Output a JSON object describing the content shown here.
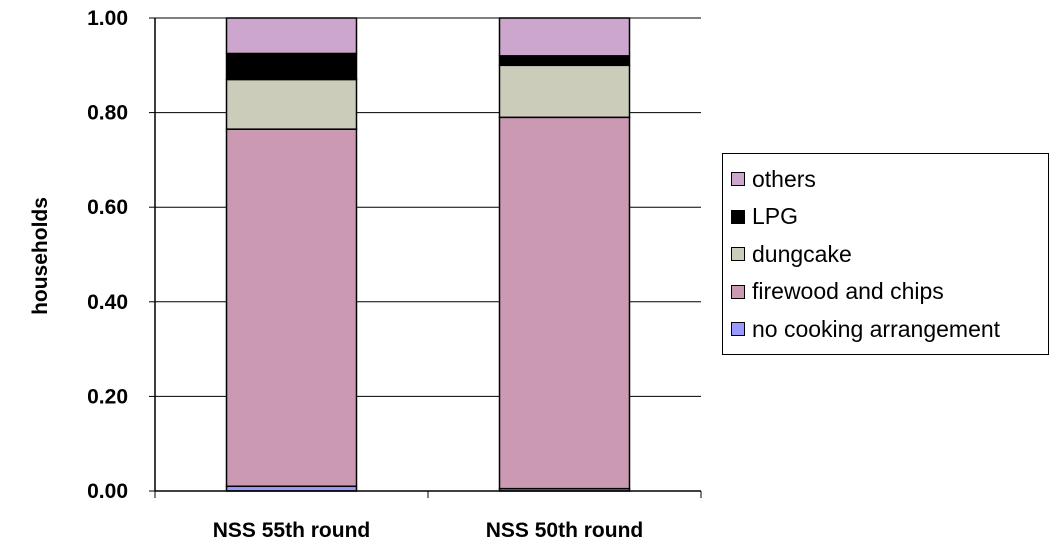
{
  "chart_data": {
    "type": "bar",
    "stacked": true,
    "title": "",
    "xlabel": "",
    "ylabel": "households",
    "ylim": [
      0,
      1
    ],
    "yticks": [
      "0.00",
      "0.20",
      "0.40",
      "0.60",
      "0.80",
      "1.00"
    ],
    "grid": true,
    "legend_position": "right",
    "categories": [
      "NSS 55th round",
      "NSS 50th round"
    ],
    "series": [
      {
        "name": "no cooking arrangement",
        "color": "#9999ff",
        "values": [
          0.01,
          0.005
        ]
      },
      {
        "name": "firewood and chips",
        "color": "#cc99b3",
        "values": [
          0.755,
          0.785
        ]
      },
      {
        "name": "dungcake",
        "color": "#ccccbb",
        "values": [
          0.105,
          0.11
        ]
      },
      {
        "name": "LPG",
        "color": "#000000",
        "values": [
          0.055,
          0.02
        ]
      },
      {
        "name": "others",
        "color": "#cca6cc",
        "values": [
          0.075,
          0.08
        ]
      }
    ]
  },
  "legend_order": [
    "others",
    "LPG",
    "dungcake",
    "firewood and chips",
    "no cooking arrangement"
  ]
}
